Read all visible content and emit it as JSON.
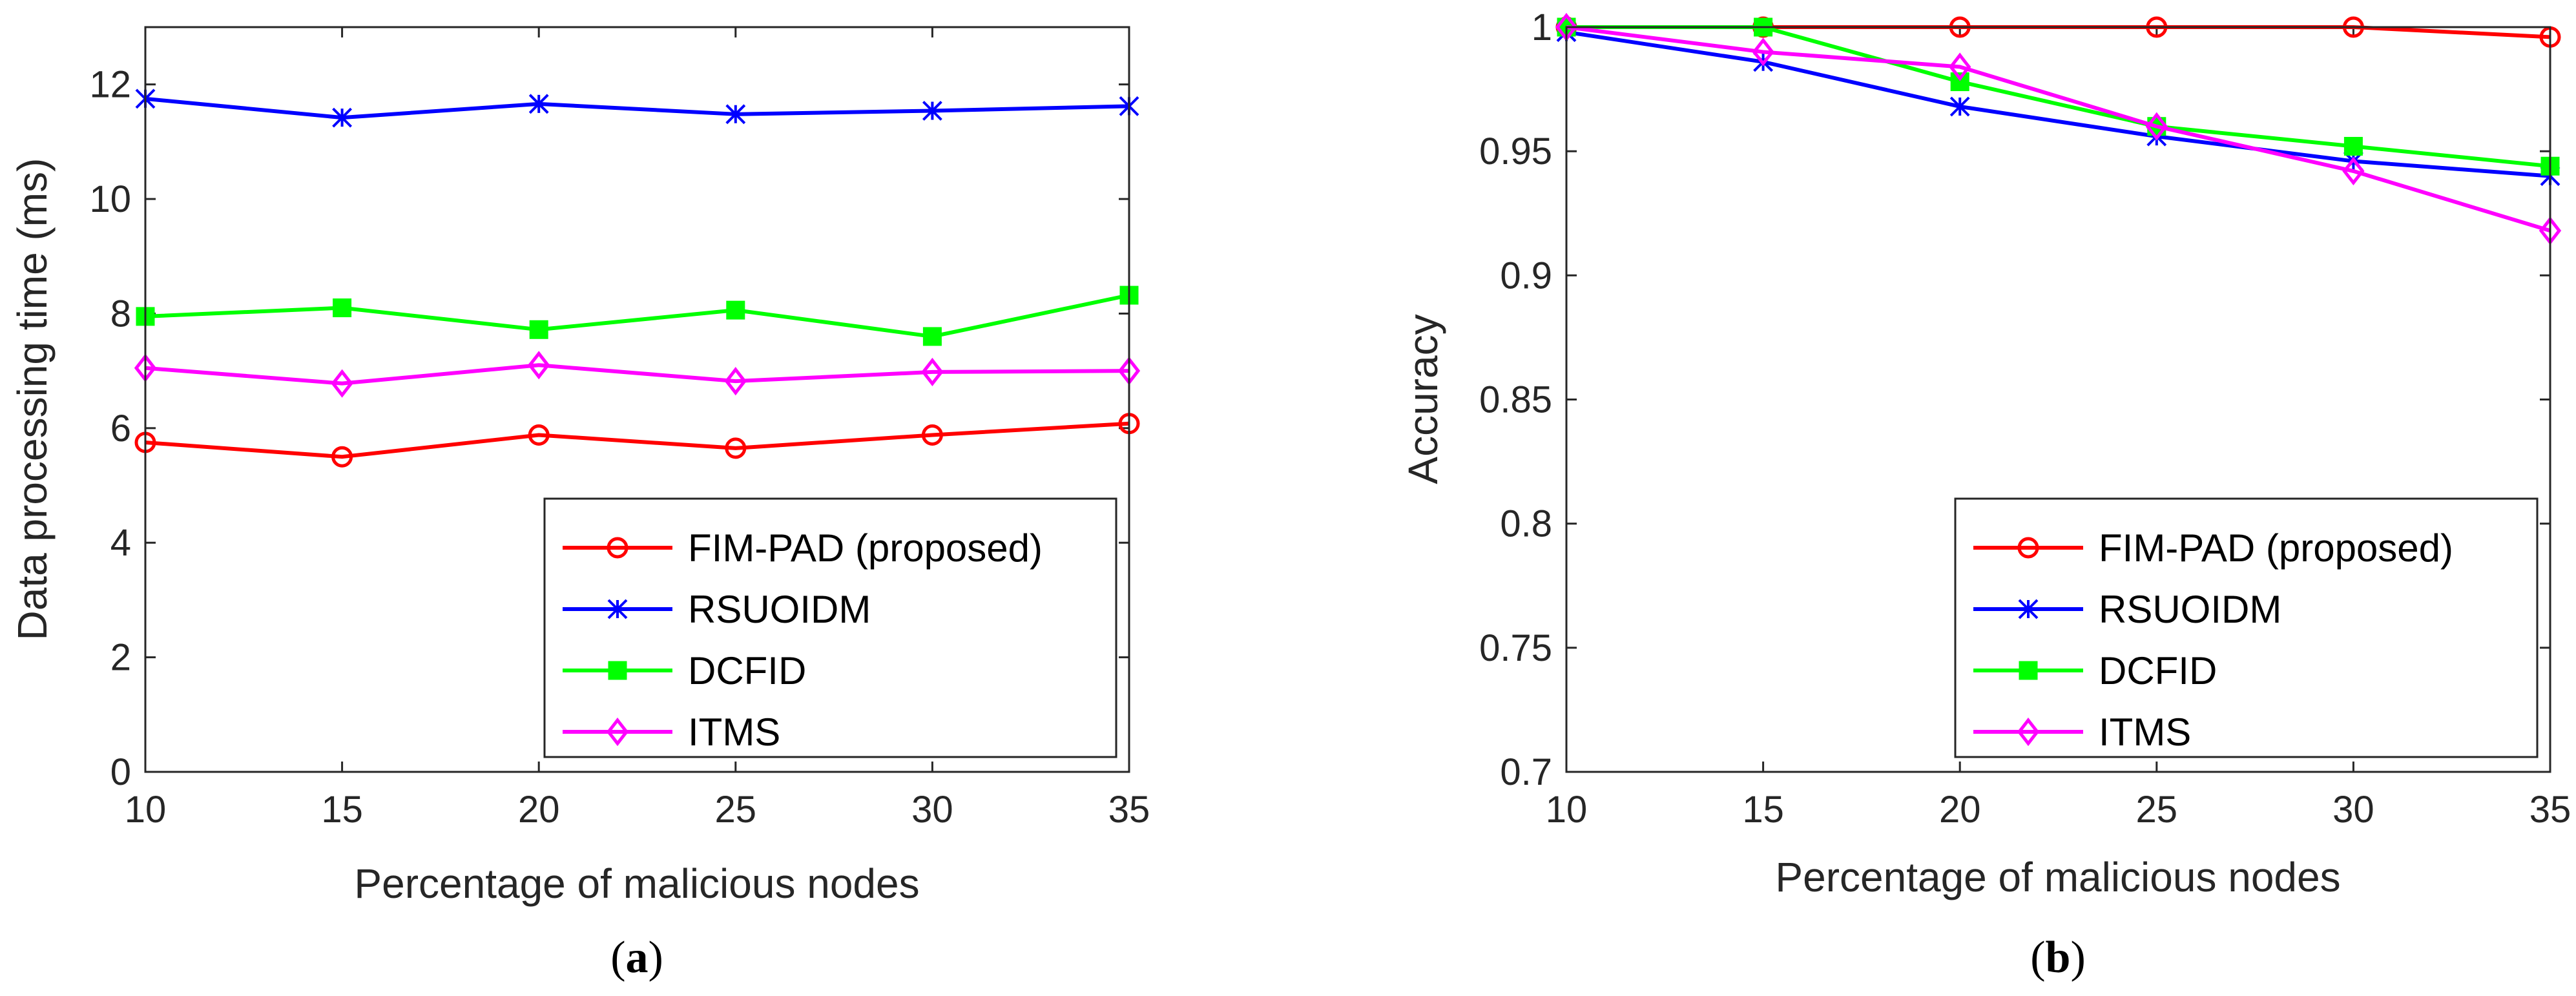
{
  "chart_data": [
    {
      "type": "line",
      "caption_letter": "a",
      "xlabel": "Percentage of malicious nodes",
      "ylabel": "Data processing time (ms)",
      "x": [
        10,
        15,
        20,
        25,
        30,
        35
      ],
      "xlim": [
        10,
        35
      ],
      "ylim": [
        0,
        13
      ],
      "xticks": [
        "10",
        "15",
        "20",
        "25",
        "30",
        "35"
      ],
      "yticks": [
        0,
        2,
        4,
        6,
        8,
        10,
        12
      ],
      "ytick_labels": [
        "0",
        "2",
        "4",
        "6",
        "8",
        "10",
        "12"
      ],
      "legend_position": "bottom-right",
      "series": [
        {
          "name": "FIM-PAD (proposed)",
          "color": "#ff0000",
          "marker": "circle",
          "values": [
            5.75,
            5.5,
            5.88,
            5.65,
            5.88,
            6.08
          ]
        },
        {
          "name": "RSUOIDM",
          "color": "#0000ff",
          "marker": "star",
          "values": [
            11.75,
            11.42,
            11.66,
            11.48,
            11.54,
            11.62
          ]
        },
        {
          "name": "DCFID",
          "color": "#00ff00",
          "marker": "square",
          "values": [
            7.95,
            8.1,
            7.72,
            8.06,
            7.6,
            8.32
          ]
        },
        {
          "name": "ITMS",
          "color": "#ff00ff",
          "marker": "diamond",
          "values": [
            7.05,
            6.78,
            7.1,
            6.82,
            6.98,
            7.0
          ]
        }
      ]
    },
    {
      "type": "line",
      "caption_letter": "b",
      "xlabel": "Percentage of malicious nodes",
      "ylabel": "Accuracy",
      "x": [
        10,
        15,
        20,
        25,
        30,
        35
      ],
      "xlim": [
        10,
        35
      ],
      "ylim": [
        0.7,
        1.0
      ],
      "xticks": [
        "10",
        "15",
        "20",
        "25",
        "30",
        "35"
      ],
      "yticks": [
        0.7,
        0.75,
        0.8,
        0.85,
        0.9,
        0.95,
        1.0
      ],
      "ytick_labels": [
        "0.7",
        "0.75",
        "0.8",
        "0.85",
        "0.9",
        "0.95",
        "1"
      ],
      "legend_position": "bottom-right",
      "series": [
        {
          "name": "FIM-PAD (proposed)",
          "color": "#ff0000",
          "marker": "circle",
          "values": [
            1.0,
            1.0,
            1.0,
            1.0,
            1.0,
            0.996
          ]
        },
        {
          "name": "RSUOIDM",
          "color": "#0000ff",
          "marker": "star",
          "values": [
            0.998,
            0.986,
            0.968,
            0.956,
            0.946,
            0.94
          ]
        },
        {
          "name": "DCFID",
          "color": "#00ff00",
          "marker": "square",
          "values": [
            1.0,
            1.0,
            0.978,
            0.96,
            0.952,
            0.944
          ]
        },
        {
          "name": "ITMS",
          "color": "#ff00ff",
          "marker": "diamond",
          "values": [
            1.0,
            0.99,
            0.984,
            0.96,
            0.942,
            0.918
          ]
        }
      ]
    }
  ]
}
